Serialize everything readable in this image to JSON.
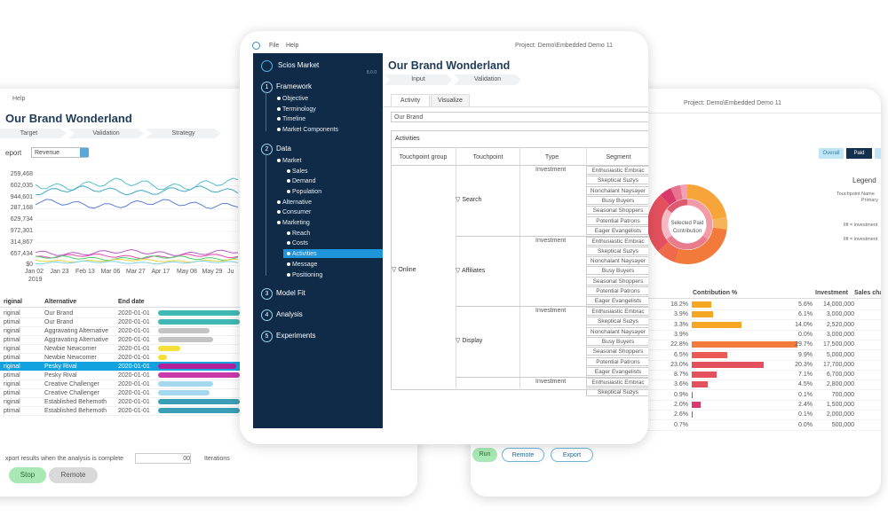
{
  "left": {
    "menu": "Help",
    "title": "Our Brand Wonderland",
    "steps": [
      "Target",
      "Validation",
      "Strategy"
    ],
    "report_label": "eport",
    "report_select": "Revenue",
    "y_labels": [
      "259,468",
      "602,035",
      "944,601",
      "287,168",
      "629,734",
      "972,301",
      "314,867",
      "657,434",
      "$0"
    ],
    "x_labels": [
      "Jan 02",
      "Jan 23",
      "Feb 13",
      "Mar 06",
      "Mar 27",
      "Apr 17",
      "May 08",
      "May 29",
      "Ju"
    ],
    "year": "2019",
    "table": {
      "headers": [
        "riginal",
        "Alternative",
        "End date"
      ],
      "rows": [
        [
          "riginal",
          "Our Brand",
          "2020-01-01"
        ],
        [
          "ptimal",
          "Our Brand",
          "2020-01-01"
        ],
        [
          "riginal",
          "Aggravating Alternative",
          "2020-01-01"
        ],
        [
          "ptimal",
          "Aggravating Alternative",
          "2020-01-01"
        ],
        [
          "riginal",
          "Newbie Newcomer",
          "2020-01-01"
        ],
        [
          "ptimal",
          "Newbie Newcomer",
          "2020-01-01"
        ],
        [
          "riginal",
          "Pesky Rival",
          "2020-01-01"
        ],
        [
          "ptimal",
          "Pesky Rival",
          "2020-01-01"
        ],
        [
          "riginal",
          "Creative Challenger",
          "2020-01-01"
        ],
        [
          "ptimal",
          "Creative Challenger",
          "2020-01-01"
        ],
        [
          "riginal",
          "Established Behemoth",
          "2020-01-01"
        ],
        [
          "ptimal",
          "Established Behemoth",
          "2020-01-01"
        ]
      ]
    },
    "export_text": "xport results when the analysis is complete",
    "iterations_value": "00",
    "iterations_label": "Iterations",
    "buttons": [
      "Stop",
      "Remote"
    ]
  },
  "center": {
    "menu": [
      "File",
      "Help"
    ],
    "project": "Project: Demo\\Embedded Demo 11",
    "app_name": "Scios Market",
    "version": "8.0.0",
    "nav": [
      {
        "number": "1",
        "label": "Framework",
        "items": [
          {
            "label": "Objective"
          },
          {
            "label": "Terminology"
          },
          {
            "label": "Timeline"
          },
          {
            "label": "Market Components"
          }
        ]
      },
      {
        "number": "2",
        "label": "Data",
        "items": [
          {
            "label": "Market",
            "children": [
              {
                "label": "Sales"
              },
              {
                "label": "Demand"
              },
              {
                "label": "Population"
              }
            ]
          },
          {
            "label": "Alternative"
          },
          {
            "label": "Consumer"
          },
          {
            "label": "Marketing",
            "children": [
              {
                "label": "Reach"
              },
              {
                "label": "Costs"
              },
              {
                "label": "Activities",
                "selected": true
              },
              {
                "label": "Message"
              },
              {
                "label": "Positioning"
              }
            ]
          }
        ]
      },
      {
        "number": "3",
        "label": "Model Fit"
      },
      {
        "number": "4",
        "label": "Analysis"
      },
      {
        "number": "5",
        "label": "Experiments"
      }
    ],
    "title": "Our Brand Wonderland",
    "steps": [
      "Input",
      "Validation"
    ],
    "tabs": [
      "Activity",
      "Visualize"
    ],
    "field": "Our Brand",
    "panel_title": "Activities",
    "table": {
      "headers": [
        "Touchpoint group",
        "Touchpoint",
        "Type",
        "Segment"
      ],
      "group": "▽ Online",
      "blocks": [
        {
          "touchpoint": "▽ Search",
          "type": "Investment",
          "segments": [
            "Enthusiastic Embrac",
            "Skeptical Suzys",
            "Nonchalant Naysayer",
            "Busy Buyers",
            "Seasonal Shoppers",
            "Potential Patrons",
            "Eager Evangelists"
          ]
        },
        {
          "touchpoint": "▽ Affiliates",
          "type": "Investment",
          "segments": [
            "Enthusiastic Embrac",
            "Skeptical Suzys",
            "Nonchalant Naysayer",
            "Busy Buyers",
            "Seasonal Shoppers",
            "Potential Patrons",
            "Eager Evangelists"
          ]
        },
        {
          "touchpoint": "▽ Display",
          "type": "Investment",
          "segments": [
            "Enthusiastic Embrac",
            "Skeptical Suzys",
            "Nonchalant Naysayer",
            "Busy Buyers",
            "Seasonal Shoppers",
            "Potential Patrons",
            "Eager Evangelists"
          ]
        },
        {
          "type": "Investment",
          "segments": [
            "Enthusiastic Embrac",
            "Skeptical Suzys"
          ]
        }
      ]
    }
  },
  "right": {
    "project": "Project: Demo\\Embedded Demo 11",
    "buttons": [
      "Overall",
      "Paid"
    ],
    "legend": "Legend",
    "legend_name": "Touchpoint Name",
    "legend_value": "Primary",
    "lift_labels": [
      "lift = investment",
      "lift = investment"
    ],
    "donut_label": "Selected Paid Contribution",
    "headers": [
      "Contribution %",
      "Investment",
      "Sales cha"
    ],
    "rows": [
      {
        "contribution": "18.2%",
        "share": 5.6,
        "share_label": "5.6%",
        "investment": "14,000,000",
        "color": "#f5a623"
      },
      {
        "contribution": "3.9%",
        "share": 6.1,
        "share_label": "6.1%",
        "investment": "3,000,000",
        "color": "#f5a623"
      },
      {
        "contribution": "3.3%",
        "share": 14.0,
        "share_label": "14.0%",
        "investment": "2,520,000",
        "color": "#f5a623"
      },
      {
        "contribution": "3.9%",
        "share": 0.0,
        "share_label": "0.0%",
        "investment": "3,000,000",
        "color": "#f5a623"
      },
      {
        "contribution": "22.8%",
        "share": 29.7,
        "share_label": "29.7%",
        "investment": "17,500,000",
        "color": "#f27a3a"
      },
      {
        "contribution": "6.5%",
        "share": 9.9,
        "share_label": "9.9%",
        "investment": "5,000,000",
        "color": "#ec5a55"
      },
      {
        "contribution": "23.0%",
        "share": 20.3,
        "share_label": "20.3%",
        "investment": "17,700,000",
        "color": "#e5505e"
      },
      {
        "contribution": "8.7%",
        "share": 7.1,
        "share_label": "7.1%",
        "investment": "6,700,000",
        "color": "#e5505e"
      },
      {
        "contribution": "3.6%",
        "share": 4.5,
        "share_label": "4.5%",
        "investment": "2,800,000",
        "color": "#e5505e"
      },
      {
        "contribution": "0.9%",
        "share": 0.1,
        "share_label": "0.1%",
        "investment": "700,000",
        "color": "#d83a6e"
      },
      {
        "contribution": "2.0%",
        "share": 2.4,
        "share_label": "2.4%",
        "investment": "1,500,000",
        "color": "#d83a6e"
      },
      {
        "contribution": "2.6%",
        "share": 0.1,
        "share_label": "0.1%",
        "investment": "2,000,000",
        "color": "#d83a6e"
      },
      {
        "contribution": "0.7%",
        "share": 0.0,
        "share_label": "0.0%",
        "investment": "500,000",
        "color": "#d83a6e"
      }
    ],
    "actions": [
      "Run",
      "Remote",
      "Export"
    ]
  }
}
